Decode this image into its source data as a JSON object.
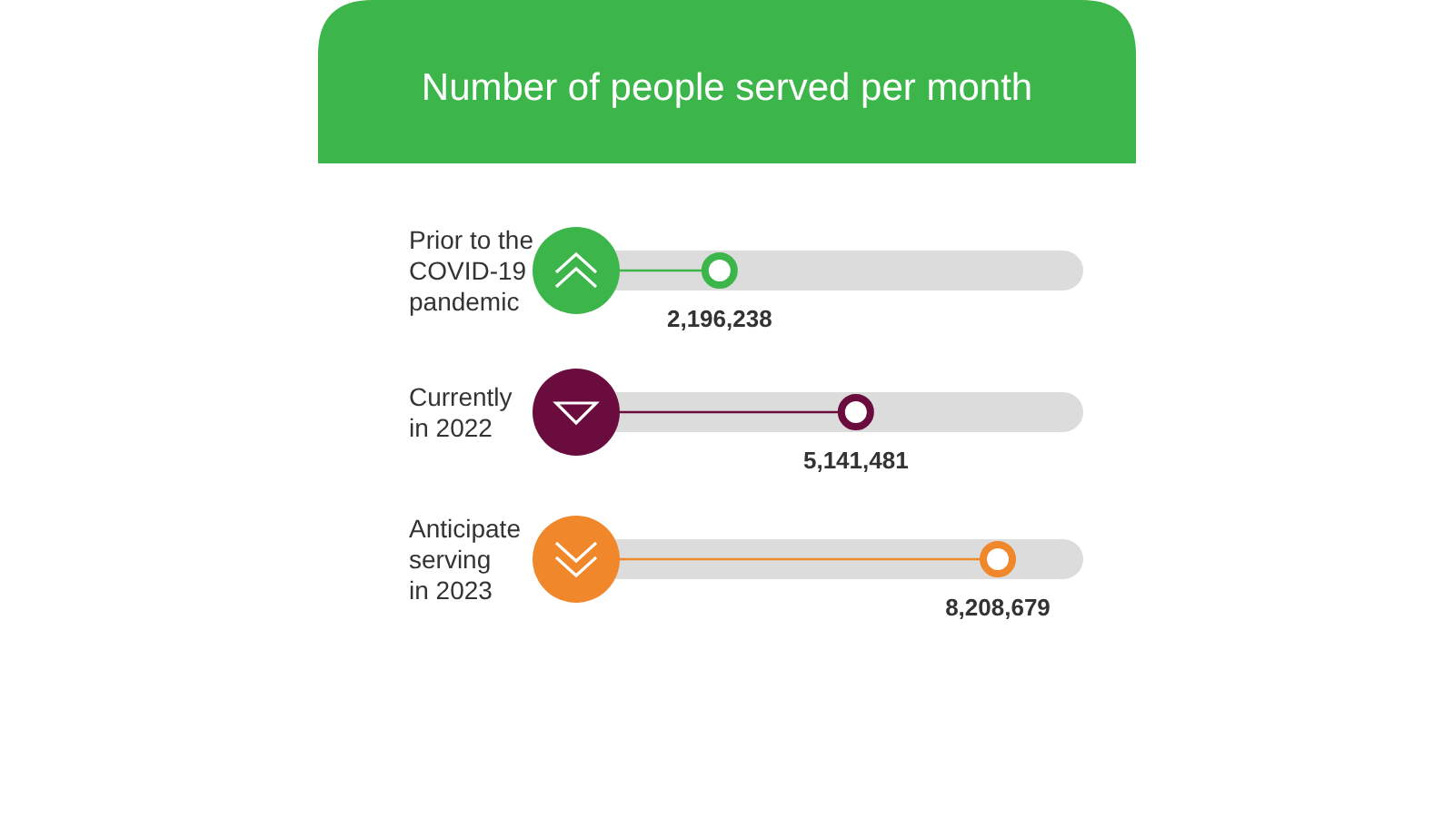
{
  "chart_data": {
    "type": "lollipop",
    "orientation": "horizontal",
    "title": "Number of people served per month",
    "categories": [
      "Prior to the\nCOVID-19\npandemic",
      "Currently\nin 2022",
      "Anticipate\nserving\nin 2023"
    ],
    "values": [
      2196238,
      5141481,
      8208679
    ],
    "value_labels": [
      "2,196,238",
      "5,141,481",
      "8,208,679"
    ],
    "colors": [
      "#3cb54a",
      "#6a0d3e",
      "#f0872a"
    ]
  }
}
